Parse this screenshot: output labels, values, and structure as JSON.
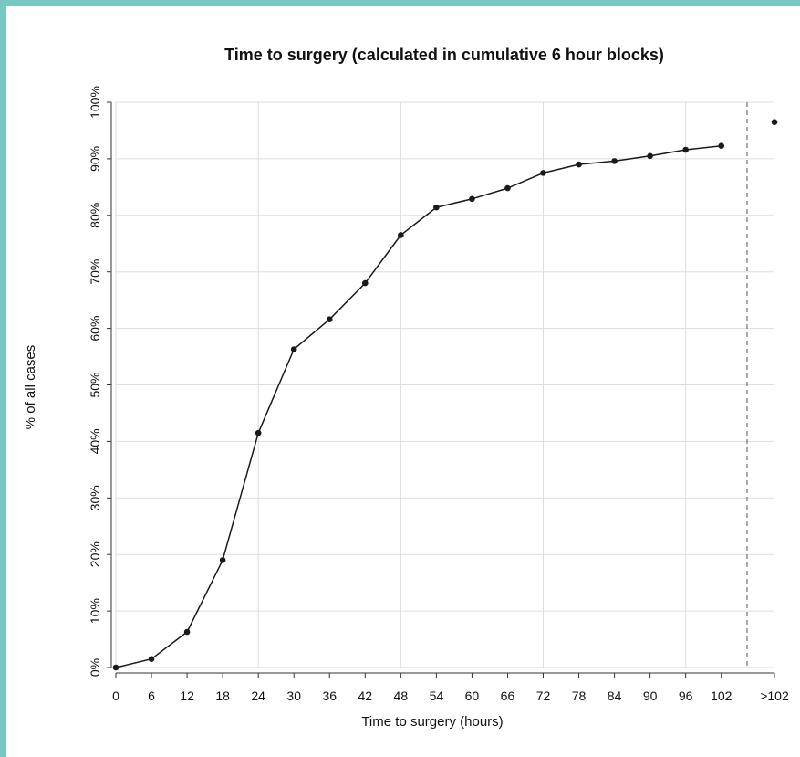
{
  "chart_data": {
    "type": "line",
    "title": "Time to surgery (calculated in cumulative 6 hour blocks)",
    "xlabel": "Time to surgery (hours)",
    "ylabel": "% of all cases",
    "x_ticks": [
      "0",
      "6",
      "12",
      "18",
      "24",
      "30",
      "36",
      "42",
      "48",
      "54",
      "60",
      "66",
      "72",
      "78",
      "84",
      "90",
      "96",
      "102",
      ">102"
    ],
    "y_ticks": [
      "0%",
      "10%",
      "20%",
      "30%",
      "40%",
      "50%",
      "60%",
      "70%",
      "80%",
      "90%",
      "100%"
    ],
    "ylim": [
      0,
      100
    ],
    "xlim": [
      0,
      102
    ],
    "grid": true,
    "series": [
      {
        "x": [
          0,
          6,
          12,
          18,
          24,
          30,
          36,
          42,
          48,
          54,
          60,
          66,
          72,
          78,
          84,
          90,
          96,
          102
        ],
        "y": [
          0.0,
          1.5,
          6.3,
          19.0,
          41.5,
          56.3,
          61.6,
          68.0,
          76.5,
          81.4,
          82.9,
          84.8,
          87.5,
          89.0,
          89.6,
          90.5,
          91.6,
          92.3
        ]
      }
    ],
    "overflow_point": {
      "label": ">102",
      "y": 96.5
    },
    "colors": {
      "line": "#1a1a1a",
      "grid": "#dddddd",
      "frame": "#77c8c0",
      "separator": "#555555"
    }
  }
}
